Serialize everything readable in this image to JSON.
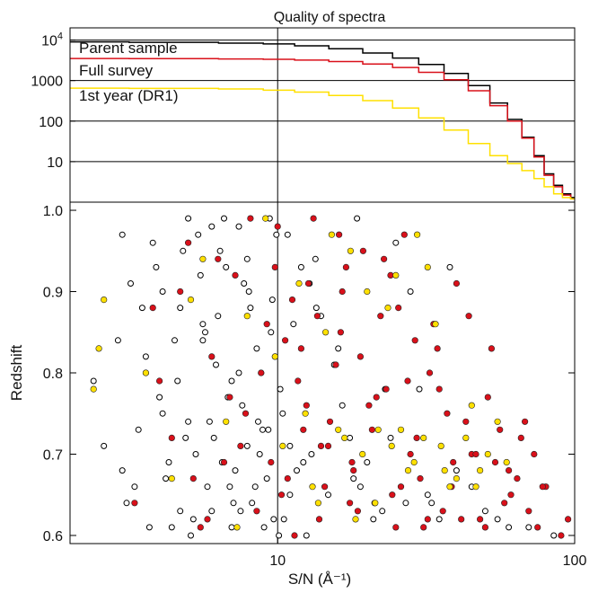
{
  "colors": {
    "parent": "#000000",
    "full": "#d9101a",
    "dr1": "#ffe000",
    "frame": "#000000",
    "background": "#ffffff"
  },
  "chart_data": [
    {
      "type": "line",
      "title": "Quality of spectra",
      "xlabel": "",
      "ylabel": "",
      "x_scale": "log",
      "y_scale": "log",
      "xlim": [
        2,
        100
      ],
      "ylim": [
        1,
        20000
      ],
      "y_ticks": [
        {
          "value": 10000,
          "base": "10",
          "exp": "4"
        },
        {
          "value": 1000,
          "label": "1000"
        },
        {
          "value": 100,
          "label": "100"
        },
        {
          "value": 10,
          "label": "10"
        }
      ],
      "grid": {
        "horizontal": [
          10,
          100,
          1000,
          10000
        ],
        "vertical": [
          10
        ]
      },
      "legend_position": "top-left",
      "series": [
        {
          "name": "Parent sample",
          "color_key": "parent",
          "x": [
            2,
            5,
            8,
            10,
            13,
            17,
            22,
            27,
            33,
            40,
            48,
            56,
            63,
            70,
            76,
            82,
            88,
            94,
            100
          ],
          "y": [
            9000,
            8800,
            8400,
            8000,
            7200,
            6100,
            4800,
            3600,
            2500,
            1500,
            750,
            280,
            110,
            40,
            14,
            5,
            2.6,
            1.6,
            1.3
          ]
        },
        {
          "name": "Full survey",
          "color_key": "full",
          "x": [
            2,
            5,
            8,
            10,
            13,
            17,
            22,
            27,
            33,
            40,
            48,
            56,
            63,
            70,
            76,
            82,
            88,
            94,
            100
          ],
          "y": [
            3500,
            3480,
            3420,
            3350,
            3200,
            2950,
            2550,
            2100,
            1600,
            1050,
            560,
            240,
            100,
            38,
            13,
            4.6,
            2.4,
            1.5,
            1.2
          ]
        },
        {
          "name": "1st year (DR1)",
          "color_key": "dr1",
          "x": [
            2,
            5,
            8,
            10,
            13,
            17,
            22,
            27,
            33,
            40,
            48,
            56,
            63,
            70,
            76,
            82,
            88,
            94,
            100
          ],
          "y": [
            650,
            640,
            620,
            580,
            520,
            430,
            320,
            210,
            120,
            60,
            28,
            14,
            9,
            6,
            3.8,
            2.4,
            1.6,
            1.3,
            1.2
          ]
        }
      ]
    },
    {
      "type": "scatter",
      "title": "",
      "xlabel": "S/N (Å⁻¹)",
      "ylabel": "Redshift",
      "x_scale": "log",
      "xlim": [
        2,
        100
      ],
      "ylim": [
        0.59,
        1.01
      ],
      "x_ticks": [
        10,
        100
      ],
      "y_ticks": [
        0.6,
        0.7,
        0.8,
        0.9,
        1.0
      ],
      "y_tick_labels": [
        "0.6",
        "0.7",
        "0.8",
        "0.9",
        "1.0"
      ],
      "x_tick_labels": [
        "10",
        "100"
      ],
      "grid": {
        "vertical": [
          10
        ]
      },
      "series": [
        {
          "name": "Parent sample",
          "color_key": "parent",
          "marker": "open-circle",
          "x": [
            2.6,
            3.0,
            3.3,
            3.6,
            3.9,
            4.1,
            4.4,
            4.7,
            5.0,
            5.3,
            5.6,
            6.0,
            6.4,
            6.8,
            7.2,
            7.7,
            8.2,
            8.8,
            9.3,
            9.9,
            10.5,
            11.3,
            12.2,
            13.4,
            14.8,
            16.5,
            18.5,
            21.0,
            24.0,
            28.0,
            33.0,
            40.0,
            50.0,
            2.9,
            3.4,
            3.8,
            4.2,
            4.6,
            5.1,
            5.5,
            5.9,
            6.3,
            6.9,
            7.4,
            7.9,
            8.5,
            9.0,
            9.6,
            10.2,
            11.0,
            12.0,
            13.0,
            15.5,
            19.0,
            25.0,
            35.0,
            60.0,
            3.1,
            3.5,
            4.0,
            4.3,
            4.8,
            5.2,
            5.7,
            6.1,
            6.6,
            7.0,
            7.5,
            8.0,
            8.6,
            9.2,
            9.8,
            10.8,
            12.5,
            14.0,
            17.5,
            22.5,
            30.0,
            45.0,
            70.0,
            2.4,
            3.2,
            3.7,
            4.5,
            4.9,
            5.4,
            5.8,
            6.2,
            6.7,
            7.1,
            7.6,
            8.1,
            8.7,
            9.4,
            9.7,
            10.4,
            11.6,
            12.8,
            16.0,
            20.0,
            27.0,
            38.0,
            55.0,
            85.0,
            3.0,
            3.6,
            4.1,
            4.7,
            5.0,
            5.6,
            6.0,
            6.5,
            7.0,
            7.4,
            7.9,
            8.4,
            8.9,
            9.5,
            10.1,
            11.0,
            13.5,
            18.0,
            23.0,
            32.0
          ],
          "y": [
            0.71,
            0.97,
            0.66,
            0.82,
            0.93,
            0.75,
            0.61,
            0.88,
            0.99,
            0.7,
            0.84,
            0.63,
            0.95,
            0.77,
            0.68,
            0.91,
            0.64,
            0.8,
            0.73,
            0.97,
            0.62,
            0.86,
            0.69,
            0.94,
            0.65,
            0.76,
            0.99,
            0.62,
            0.72,
            0.9,
            0.64,
            0.68,
            0.63,
            0.84,
            0.73,
            0.96,
            0.67,
            0.79,
            0.6,
            0.92,
            0.74,
            0.87,
            0.66,
            0.98,
            0.71,
            0.83,
            0.61,
            0.89,
            0.78,
            0.65,
            0.93,
            0.7,
            0.81,
            0.66,
            0.96,
            0.62,
            0.61,
            0.64,
            0.88,
            0.77,
            0.69,
            0.95,
            0.62,
            0.85,
            0.72,
            0.99,
            0.79,
            0.63,
            0.9,
            0.74,
            0.67,
            0.82,
            0.97,
            0.6,
            0.87,
            0.72,
            0.63,
            0.78,
            0.66,
            0.61,
            0.79,
            0.91,
            0.61,
            0.84,
            0.72,
            0.97,
            0.66,
            0.81,
            0.93,
            0.64,
            0.76,
            0.88,
            0.7,
            0.99,
            0.62,
            0.75,
            0.68,
            0.91,
            0.83,
            0.69,
            0.64,
            0.93,
            0.62,
            0.6,
            0.68,
            0.8,
            0.9,
            0.63,
            0.74,
            0.86,
            0.98,
            0.69,
            0.61,
            0.8,
            0.94,
            0.66,
            0.73,
            0.85,
            0.6,
            0.71,
            0.88,
            0.67,
            0.78,
            0.65
          ]
        },
        {
          "name": "Full survey",
          "color_key": "full",
          "marker": "filled-circle",
          "x": [
            3.3,
            3.8,
            4.4,
            5.0,
            5.5,
            6.0,
            6.6,
            7.2,
            7.8,
            8.5,
            9.2,
            10.0,
            10.8,
            11.7,
            12.7,
            13.8,
            15.0,
            16.3,
            17.8,
            19.4,
            21.2,
            23.2,
            25.5,
            28.0,
            31.0,
            34.5,
            38.5,
            43.0,
            48.0,
            54.0,
            61.0,
            70.0,
            80.0,
            95.0,
            4.0,
            5.2,
            6.3,
            7.5,
            8.8,
            10.3,
            11.2,
            12.2,
            13.2,
            14.4,
            15.7,
            17.0,
            18.6,
            20.3,
            22.2,
            24.3,
            26.7,
            29.4,
            32.5,
            36.0,
            40.0,
            45.0,
            51.0,
            58.0,
            66.0,
            75.0,
            4.7,
            5.8,
            6.9,
            8.1,
            9.5,
            10.6,
            11.4,
            12.5,
            13.6,
            14.8,
            16.1,
            17.5,
            19.0,
            20.8,
            22.8,
            25.0,
            27.4,
            30.2,
            33.5,
            37.2,
            41.5,
            46.5,
            52.5,
            60.0,
            68.0,
            78.0,
            90.0,
            9.8,
            12.0,
            14.0,
            16.5,
            18.0,
            21.5,
            24.0,
            26.0,
            29.0,
            32.0,
            35.0,
            39.0,
            44.0,
            50.0,
            56.0,
            64.0,
            73.0
          ],
          "y": [
            0.64,
            0.88,
            0.72,
            0.96,
            0.61,
            0.82,
            0.69,
            0.92,
            0.75,
            0.63,
            0.86,
            0.98,
            0.67,
            0.79,
            0.91,
            0.62,
            0.74,
            0.85,
            0.69,
            0.95,
            0.64,
            0.78,
            0.88,
            0.7,
            0.61,
            0.83,
            0.66,
            0.74,
            0.62,
            0.69,
            0.65,
            0.63,
            0.66,
            0.62,
            0.79,
            0.67,
            0.94,
            0.71,
            0.8,
            0.65,
            0.89,
            0.73,
            0.99,
            0.66,
            0.81,
            0.93,
            0.63,
            0.76,
            0.87,
            0.65,
            0.97,
            0.72,
            0.8,
            0.63,
            0.91,
            0.7,
            0.77,
            0.64,
            0.72,
            0.61,
            0.9,
            0.62,
            0.77,
            0.99,
            0.69,
            0.84,
            0.6,
            0.76,
            0.87,
            0.71,
            0.97,
            0.64,
            0.82,
            0.73,
            0.94,
            0.61,
            0.79,
            0.67,
            0.86,
            0.75,
            0.62,
            0.7,
            0.83,
            0.68,
            0.74,
            0.66,
            0.6,
            0.93,
            0.83,
            0.71,
            0.9,
            0.68,
            0.77,
            0.92,
            0.66,
            0.84,
            0.62,
            0.78,
            0.69,
            0.87,
            0.61,
            0.73,
            0.67,
            0.7
          ],
          "placeholder": null
        },
        {
          "name": "1st year (DR1)",
          "color_key": "dr1",
          "marker": "filled-circle",
          "x": [
            2.4,
            2.5,
            2.6,
            3.6,
            4.4,
            5.6,
            6.7,
            7.9,
            9.1,
            10.4,
            11.8,
            13.1,
            14.5,
            16.0,
            17.6,
            19.3,
            21.3,
            23.5,
            26.0,
            28.8,
            32.0,
            35.5,
            40.0,
            45.0,
            51.0,
            59.0,
            5.1,
            7.3,
            9.8,
            12.4,
            15.2,
            18.3,
            21.8,
            25.0,
            27.5,
            31.0,
            34.0,
            38.0,
            43.0,
            48.0,
            55.0,
            13.7,
            16.8,
            20.0,
            24.2,
            29.5,
            36.5,
            46.5
          ],
          "y": [
            0.78,
            0.83,
            0.89,
            0.8,
            0.67,
            0.94,
            0.74,
            0.87,
            0.99,
            0.71,
            0.91,
            0.66,
            0.85,
            0.73,
            0.95,
            0.7,
            0.64,
            0.88,
            0.73,
            0.69,
            0.93,
            0.71,
            0.67,
            0.76,
            0.7,
            0.69,
            0.89,
            0.61,
            0.82,
            0.75,
            0.97,
            0.62,
            0.73,
            0.92,
            0.68,
            0.72,
            0.86,
            0.66,
            0.72,
            0.68,
            0.74,
            0.64,
            0.72,
            0.9,
            0.71,
            0.97,
            0.68,
            0.66
          ]
        }
      ]
    }
  ]
}
